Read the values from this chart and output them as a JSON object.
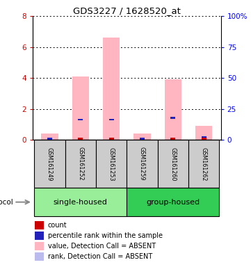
{
  "title": "GDS3227 / 1628520_at",
  "samples": [
    "GSM161249",
    "GSM161252",
    "GSM161253",
    "GSM161259",
    "GSM161260",
    "GSM161262"
  ],
  "pink_bar_heights": [
    0.42,
    4.1,
    6.62,
    0.4,
    3.92,
    0.9
  ],
  "red_mark_heights": [
    0.12,
    0.12,
    0.12,
    0.12,
    0.12,
    0.12
  ],
  "blue_mark_heights": [
    0.07,
    1.32,
    1.3,
    0.07,
    1.42,
    0.18
  ],
  "ylim_left": [
    0,
    8
  ],
  "ylim_right": [
    0,
    100
  ],
  "yticks_left": [
    0,
    2,
    4,
    6,
    8
  ],
  "yticks_right": [
    0,
    25,
    50,
    75,
    100
  ],
  "ytick_labels_right": [
    "0",
    "25",
    "50",
    "75",
    "100%"
  ],
  "pink_color": "#FFB6C1",
  "red_color": "#CC0000",
  "blue_color": "#2222BB",
  "light_blue_color": "#BBBBEE",
  "bar_width": 0.55,
  "group_spans": [
    {
      "start": 0,
      "end": 2,
      "label": "single-housed",
      "color": "#99EE99"
    },
    {
      "start": 3,
      "end": 5,
      "label": "group-housed",
      "color": "#33CC55"
    }
  ],
  "legend_items": [
    {
      "color": "#CC0000",
      "label": "count"
    },
    {
      "color": "#2222BB",
      "label": "percentile rank within the sample"
    },
    {
      "color": "#FFB6C1",
      "label": "value, Detection Call = ABSENT"
    },
    {
      "color": "#BBBBEE",
      "label": "rank, Detection Call = ABSENT"
    }
  ]
}
